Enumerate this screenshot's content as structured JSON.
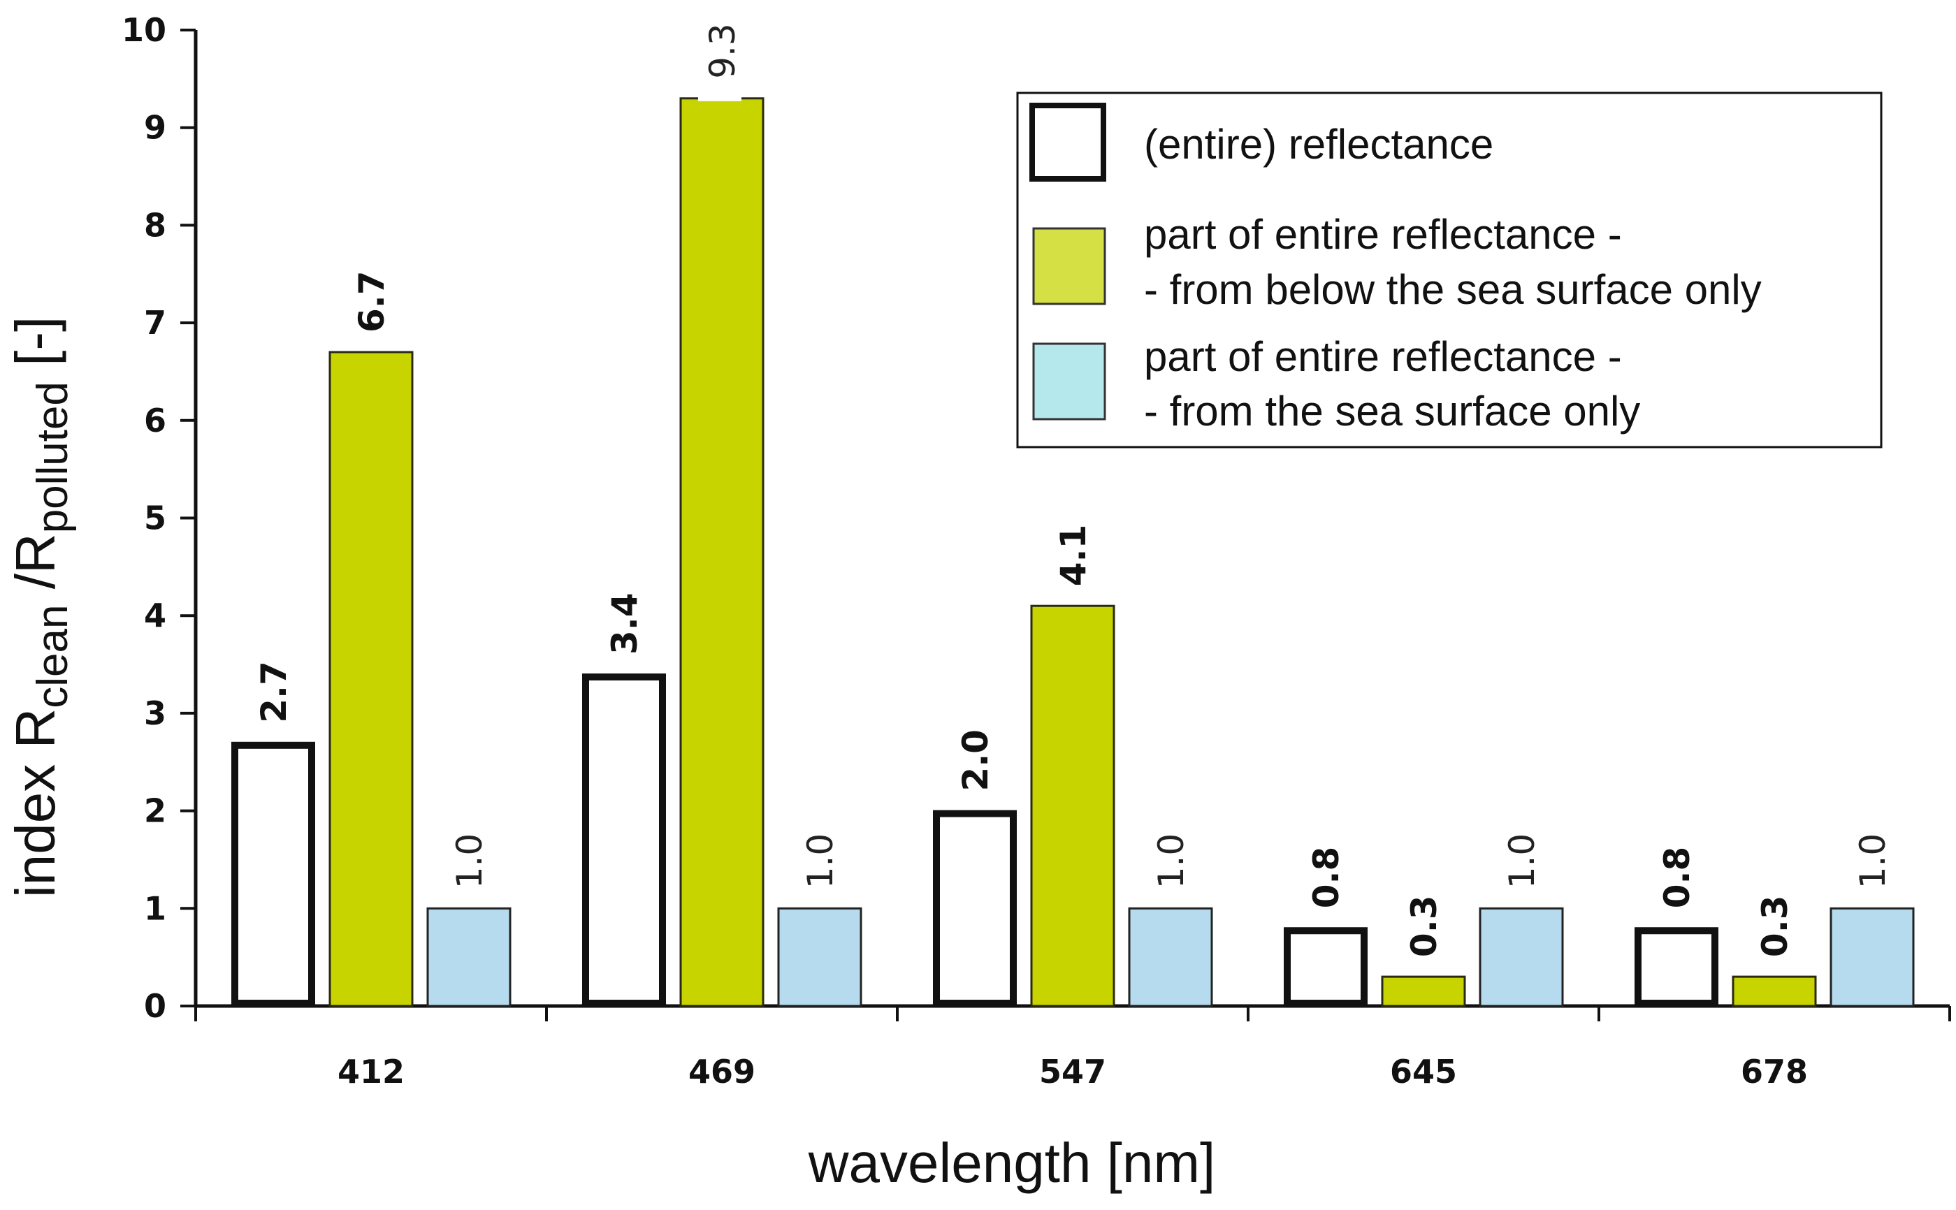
{
  "chart_data": {
    "type": "bar",
    "categories": [
      "412",
      "469",
      "547",
      "645",
      "678"
    ],
    "series": [
      {
        "name": "(entire) reflectance",
        "values": [
          2.7,
          3.4,
          2.0,
          0.8,
          0.8
        ],
        "labels": [
          "2.7",
          "3.4",
          "2.0",
          "0.8",
          "0.8"
        ],
        "fill": "#ffffff",
        "stroke": "#111111",
        "label_style": "bold"
      },
      {
        "name": "part of entire reflectance - - from below the sea surface only",
        "values": [
          6.7,
          9.3,
          4.1,
          0.3,
          0.3
        ],
        "labels": [
          "6.7",
          "9.3",
          "4.1",
          "0.3",
          "0.3"
        ],
        "fill": "#c8d400",
        "stroke": "#2a2a10",
        "label_style": "mixed"
      },
      {
        "name": "part of entire reflectance - - from the sea surface only",
        "values": [
          1.0,
          1.0,
          1.0,
          1.0,
          1.0
        ],
        "labels": [
          "1.0",
          "1.0",
          "1.0",
          "1.0",
          "1.0"
        ],
        "fill": "#b6dbee",
        "stroke": "#222222",
        "label_style": "light"
      }
    ],
    "xlabel": "wavelength  [nm]",
    "ylabel": {
      "prefix": "index  R",
      "sub1": "clean",
      "mid": " /R",
      "sub2": "polluted",
      "suffix": " [-]"
    },
    "ylim": [
      0,
      10
    ],
    "yticks": [
      "0",
      "1",
      "2",
      "3",
      "4",
      "5",
      "6",
      "7",
      "8",
      "9",
      "10"
    ],
    "legend": {
      "placement": "top-right",
      "entries": [
        {
          "lines": [
            "(entire) reflectance"
          ],
          "swatch": "#ffffff"
        },
        {
          "lines": [
            "part of entire reflectance -",
            "- from below the sea surface only"
          ],
          "swatch": "#d4e044"
        },
        {
          "lines": [
            "part of entire reflectance -",
            "- from the sea surface only"
          ],
          "swatch": "#b5e8ec"
        }
      ]
    },
    "grid": false
  }
}
